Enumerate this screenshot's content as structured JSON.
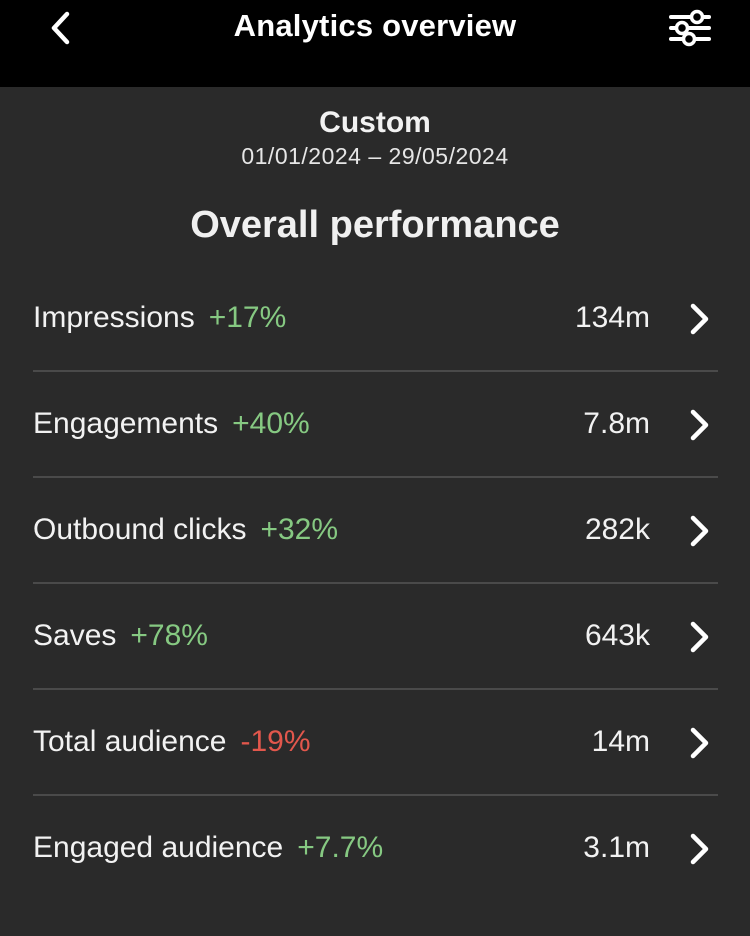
{
  "header": {
    "title": "Analytics overview",
    "back_icon": "chevron-left-icon",
    "filter_icon": "sliders-icon"
  },
  "date_range": {
    "name": "Custom",
    "dates": "01/01/2024 – 29/05/2024"
  },
  "section": {
    "title": "Overall performance"
  },
  "metrics": [
    {
      "label": "Impressions",
      "change": "+17%",
      "value": "134m",
      "trend": "up"
    },
    {
      "label": "Engagements",
      "change": "+40%",
      "value": "7.8m",
      "trend": "up"
    },
    {
      "label": "Outbound clicks",
      "change": "+32%",
      "value": "282k",
      "trend": "up"
    },
    {
      "label": "Saves",
      "change": "+78%",
      "value": "643k",
      "trend": "up"
    },
    {
      "label": "Total audience",
      "change": "-19%",
      "value": "14m",
      "trend": "down"
    },
    {
      "label": "Engaged audience",
      "change": "+7.7%",
      "value": "3.1m",
      "trend": "up"
    }
  ],
  "colors": {
    "background": "#2a2a2a",
    "header_background": "#000000",
    "positive": "#86c982",
    "negative": "#e2574c"
  }
}
